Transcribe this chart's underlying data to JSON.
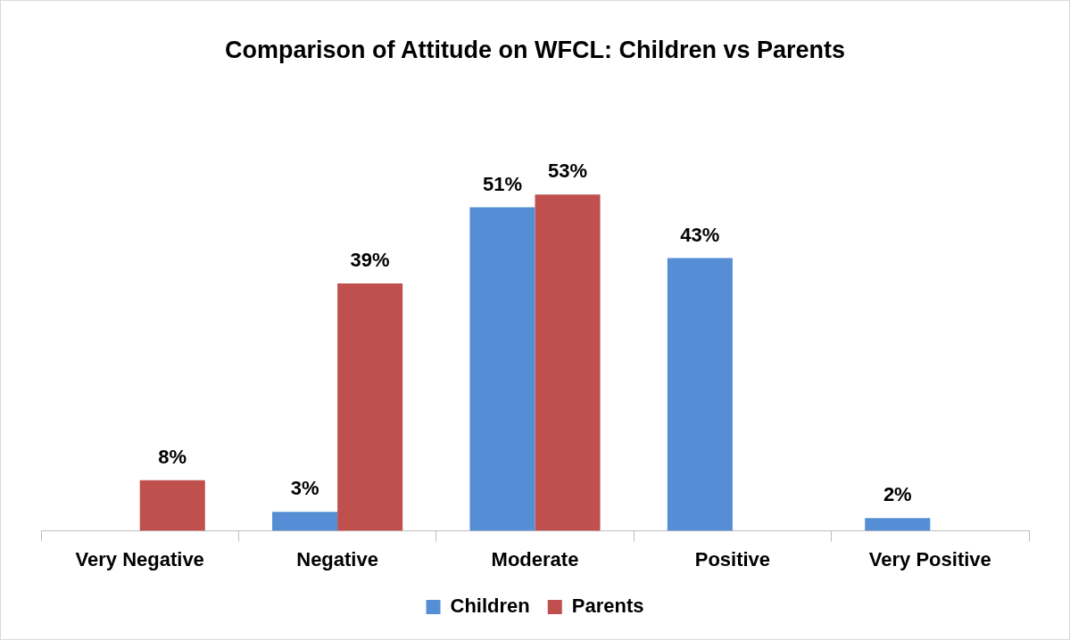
{
  "chart_data": {
    "type": "bar",
    "title": "Comparison of Attitude on WFCL: Children vs Parents",
    "categories": [
      "Very Negative",
      "Negative",
      "Moderate",
      "Positive",
      "Very Positive"
    ],
    "series": [
      {
        "name": "Children",
        "color": "#558ed5",
        "values": [
          null,
          3,
          51,
          43,
          2
        ],
        "value_labels": [
          null,
          "3%",
          "51%",
          "43%",
          "2%"
        ]
      },
      {
        "name": "Parents",
        "color": "#c0504d",
        "values": [
          8,
          39,
          53,
          null,
          null
        ],
        "value_labels": [
          "8%",
          "39%",
          "53%",
          null,
          null
        ]
      }
    ],
    "grid": false,
    "legend": "bottom"
  }
}
